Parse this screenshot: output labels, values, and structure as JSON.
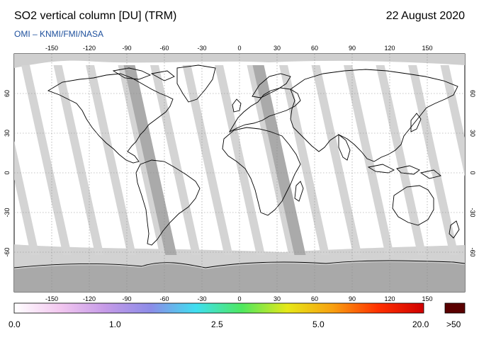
{
  "header": {
    "title": "SO2 vertical column [DU] (TRM)",
    "date": "22 August 2020",
    "credit": "OMI  –  KNMI/FMI/NASA"
  },
  "map": {
    "lon_ticks": [
      "-150",
      "-120",
      "-90",
      "-60",
      "-30",
      "0",
      "30",
      "60",
      "90",
      "120",
      "150"
    ],
    "lat_ticks": [
      "60",
      "30",
      "0",
      "-30",
      "-60"
    ],
    "colors": {
      "ocean": "#ffffff",
      "no_data": "#cfcfcf",
      "overpass_dark": "#a8a8a8",
      "coast": "#000000",
      "grid": "#888888"
    }
  },
  "colorbar": {
    "labels": [
      "0.0",
      "1.0",
      "2.5",
      "5.0",
      "20.0"
    ],
    "overflow_label": ">50",
    "overflow_color": "#5a0000",
    "stops": [
      "#ffffff",
      "#f3c8f0",
      "#c69be8",
      "#8c8ce8",
      "#3fdff0",
      "#4ee860",
      "#e6e818",
      "#f8a010",
      "#ff3000",
      "#d00000"
    ]
  }
}
